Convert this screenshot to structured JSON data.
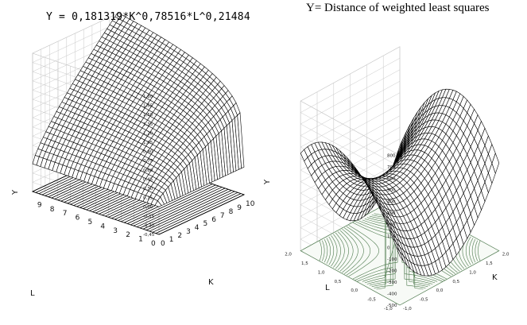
{
  "chart_data": [
    {
      "type": "surface3d",
      "title": "Y = 0,181319*K^0,78516*L^0,21484",
      "formula": {
        "a": 0.181319,
        "alpha": 0.78516,
        "beta": 0.21484
      },
      "xlabel": "K",
      "ylabel": "L",
      "zlabel": "Y",
      "x_ticks": [
        "0",
        "1",
        "2",
        "3",
        "4",
        "5",
        "6",
        "7",
        "8",
        "9",
        "10"
      ],
      "y_ticks": [
        "0",
        "1",
        "2",
        "3",
        "4",
        "5",
        "6",
        "7",
        "8",
        "9"
      ],
      "z_ticks": [
        "1,80",
        "1,65",
        "1,50",
        "1,35",
        "1,20",
        "1,05",
        "0,90",
        "0,75",
        "0,60",
        "0,45",
        "0,30",
        "0,15",
        "0,00",
        "-0,15",
        "-0,30",
        "-0,45"
      ],
      "xlim": [
        0,
        10
      ],
      "ylim": [
        0,
        10
      ],
      "zlim": [
        -0.45,
        1.8
      ],
      "grid": true
    },
    {
      "type": "surface3d",
      "title": "Y= Distance of weighted least squares",
      "zlabel": "Y",
      "xlabel": "K",
      "ylabel": "L",
      "z_ticks": [
        "800",
        "700",
        "600",
        "500",
        "400",
        "300",
        "200",
        "100",
        "0",
        "-100",
        "-200",
        "-300",
        "-400",
        "-500"
      ],
      "x_ticks": [
        "-1,0",
        "-0,5",
        "0,0",
        "0,5",
        "1,0",
        "1,5",
        "2,0"
      ],
      "y_ticks": [
        "-1,0",
        "-0,5",
        "0,0",
        "0,5",
        "1,0",
        "1,5",
        "2,0"
      ],
      "zlim": [
        -500,
        800
      ],
      "contour_projection": true,
      "grid": true
    }
  ],
  "colors": {
    "mesh": "#000000",
    "contour": "#4e7a4e",
    "grid": "#c8c8c8",
    "background": "#ffffff"
  }
}
